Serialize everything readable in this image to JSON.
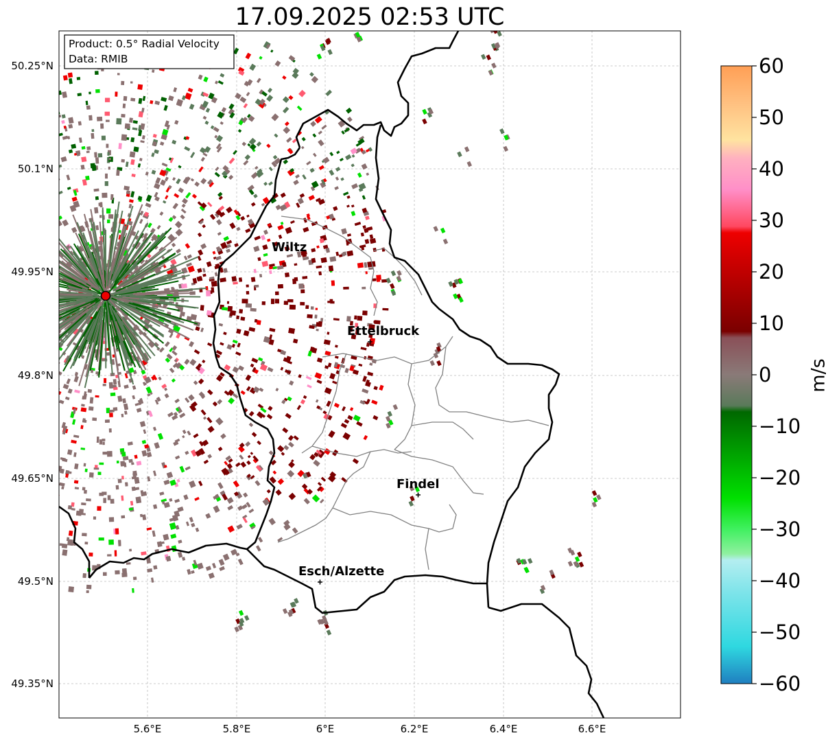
{
  "title": "17.09.2025 02:53 UTC",
  "info_box": {
    "product": "Product: 0.5° Radial Velocity",
    "data": "Data: RMIB"
  },
  "map": {
    "lon_range": [
      5.41,
      6.81
    ],
    "lat_range": [
      49.3,
      50.3
    ],
    "lat_ticks": [
      "50.25°N",
      "50.1°N",
      "49.95°N",
      "49.8°N",
      "49.65°N",
      "49.5°N",
      "49.35°N"
    ],
    "lon_ticks": [
      "5.6°E",
      "5.8°E",
      "6°E",
      "6.2°E",
      "6.4°E",
      "6.6°E"
    ],
    "gridlines": true,
    "radar_site": {
      "lon": 5.505,
      "lat": 49.915
    },
    "cities": [
      {
        "name": "Wiltz",
        "lon": 5.93,
        "lat": 49.97
      },
      {
        "name": "Ettelbruck",
        "lon": 6.1,
        "lat": 49.85
      },
      {
        "name": "Findel",
        "lon": 6.21,
        "lat": 49.63
      },
      {
        "name": "Esch/Alzette",
        "lon": 5.99,
        "lat": 49.5
      }
    ]
  },
  "colorbar": {
    "label": "m/s",
    "min": -60,
    "max": 60,
    "ticks": [
      "60",
      "50",
      "40",
      "30",
      "20",
      "10",
      "0",
      "−10",
      "−20",
      "−30",
      "−40",
      "−50",
      "−60"
    ],
    "colors": {
      "orange": "#ff9f55",
      "light_orange": "#ffd79a",
      "pink": "#ff8fc8",
      "salmon": "#ff5a70",
      "red": "#ee0000",
      "dark_red": "#7a0000",
      "gray_brown": "#8a7070",
      "gray_green": "#5a7a5a",
      "dark_green": "#006000",
      "green": "#00e000",
      "light_green": "#90f0a0",
      "light_cyan": "#b0eef0",
      "cyan": "#30dde0",
      "blue": "#1f7fc0"
    }
  }
}
